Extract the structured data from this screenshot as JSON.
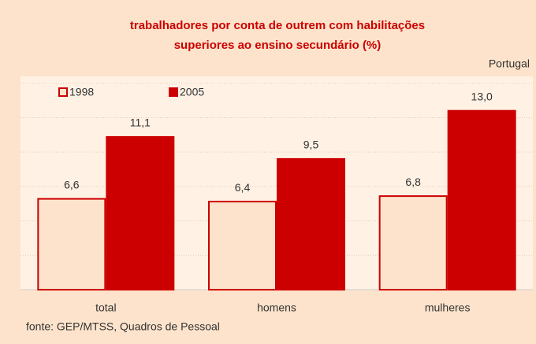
{
  "chart_data": {
    "type": "bar",
    "title": [
      "trabalhadores por conta de outrem com habilitações",
      "superiores ao ensino secundário (%)"
    ],
    "note": "Portugal",
    "source": "fonte: GEP/MTSS, Quadros de Pessoal",
    "categories": [
      "total",
      "homens",
      "mulheres"
    ],
    "series": [
      {
        "name": "1998",
        "color": "#fde3cb",
        "stroke": "#cc0000",
        "values": [
          6.6,
          6.4,
          6.8
        ],
        "value_labels": [
          "6,6",
          "6,4",
          "6,8"
        ]
      },
      {
        "name": "2005",
        "color": "#cc0000",
        "stroke": "#cc0000",
        "values": [
          11.1,
          9.5,
          13.0
        ],
        "value_labels": [
          "11,1",
          "9,5",
          "13,0"
        ]
      }
    ],
    "ylim": [
      0,
      15.5
    ],
    "yticks": [
      0,
      2.5,
      5,
      7.5,
      10,
      12.5,
      15
    ],
    "grid": true
  }
}
